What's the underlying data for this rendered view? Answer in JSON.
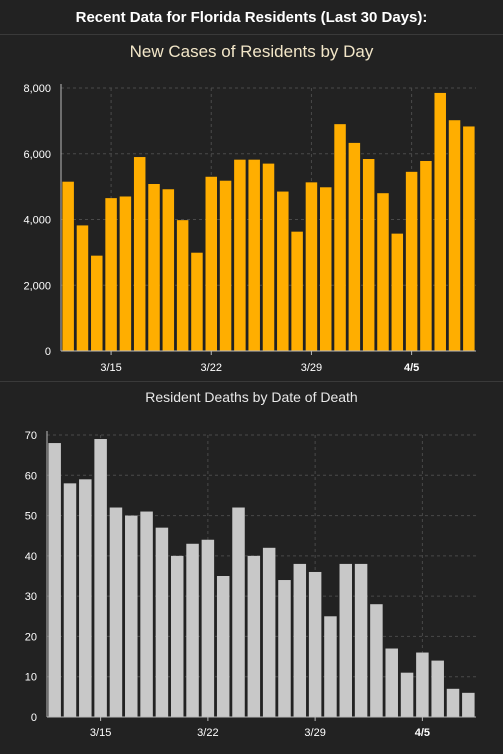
{
  "header": {
    "title": "Recent Data for Florida Residents (Last 30 Days):"
  },
  "chart_data": [
    {
      "type": "bar",
      "title": "New Cases of Residents by Day",
      "color": "#ffae00",
      "ylim": [
        0,
        8000
      ],
      "yticks": [
        0,
        2000,
        4000,
        6000,
        8000
      ],
      "ytick_labels": [
        "0",
        "2,000",
        "4,000",
        "6,000",
        "8,000"
      ],
      "xtick_labels": [
        {
          "label": "3/15",
          "index": 3,
          "bold": false
        },
        {
          "label": "3/22",
          "index": 10,
          "bold": false
        },
        {
          "label": "3/29",
          "index": 17,
          "bold": false
        },
        {
          "label": "4/5",
          "index": 24,
          "bold": true
        }
      ],
      "values": [
        5150,
        3820,
        2900,
        4650,
        4700,
        5900,
        5080,
        4920,
        3980,
        2990,
        5300,
        5180,
        5820,
        5820,
        5700,
        4850,
        3630,
        5130,
        4980,
        6900,
        6330,
        5840,
        4800,
        3570,
        5450,
        5780,
        7850,
        7020,
        6830
      ],
      "grid": true
    },
    {
      "type": "bar",
      "title": "Resident Deaths by Date of Death",
      "color": "#c8c8c8",
      "ylim": [
        0,
        70
      ],
      "yticks": [
        0,
        10,
        20,
        30,
        40,
        50,
        60,
        70
      ],
      "ytick_labels": [
        "0",
        "10",
        "20",
        "30",
        "40",
        "50",
        "60",
        "70"
      ],
      "xtick_labels": [
        {
          "label": "3/15",
          "index": 3,
          "bold": false
        },
        {
          "label": "3/22",
          "index": 10,
          "bold": false
        },
        {
          "label": "3/29",
          "index": 17,
          "bold": false
        },
        {
          "label": "4/5",
          "index": 24,
          "bold": true
        }
      ],
      "values": [
        68,
        58,
        59,
        69,
        52,
        50,
        51,
        47,
        40,
        43,
        44,
        35,
        52,
        40,
        42,
        34,
        38,
        36,
        25,
        38,
        38,
        28,
        17,
        11,
        16,
        14,
        7,
        6
      ],
      "grid": true
    }
  ]
}
